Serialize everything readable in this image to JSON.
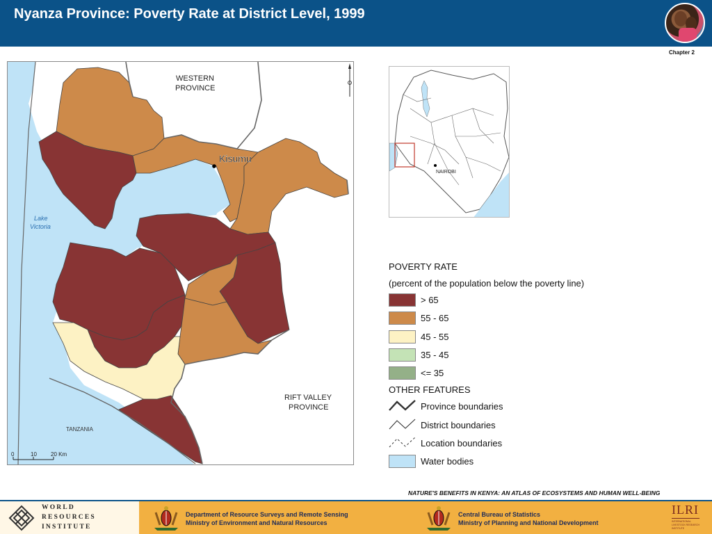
{
  "header": {
    "title": "Nyanza Province: Poverty Rate at District Level, 1999",
    "photo_icon": "children-photo"
  },
  "chapter": "Chapter 2",
  "map": {
    "labels": {
      "western": [
        "WESTERN",
        "PROVINCE"
      ],
      "rift_valley": [
        "RIFT VALLEY",
        "PROVINCE"
      ],
      "tanzania": "TANZANIA",
      "lake": [
        "Lake",
        "Victoria"
      ],
      "city": "Kisumu"
    },
    "scale": {
      "ticks": [
        "0",
        "10",
        "20 Km"
      ]
    },
    "north_arrow_icon": "north-arrow-icon"
  },
  "inset": {
    "city": "NAIROBI"
  },
  "legend": {
    "title": "POVERTY RATE",
    "subtitle": "(percent of the population below the poverty line)",
    "classes": [
      {
        "label": "> 65",
        "color": "#883434"
      },
      {
        "label": "55 - 65",
        "color": "#cd8a4a"
      },
      {
        "label": "45 - 55",
        "color": "#fdf2c4"
      },
      {
        "label": "35 - 45",
        "color": "#c4e3b6"
      },
      {
        "label": "<= 35",
        "color": "#94b088"
      }
    ],
    "other_title": "OTHER FEATURES",
    "features": [
      {
        "label": "Province boundaries",
        "icon": "province-boundary-icon"
      },
      {
        "label": "District boundaries",
        "icon": "district-boundary-icon"
      },
      {
        "label": "Location boundaries",
        "icon": "location-boundary-icon"
      },
      {
        "label": "Water bodies",
        "icon": "water-swatch",
        "color": "#bfe3f7"
      }
    ]
  },
  "atlas_note": "NATURE'S BENEFITS IN KENYA: AN ATLAS OF ECOSYSTEMS AND HUMAN WELL-BEING",
  "footer": {
    "wri": [
      "WORLD",
      "RESOURCES",
      "INSTITUTE"
    ],
    "dept1": [
      "Department of Resource Surveys and Remote Sensing",
      "Ministry of Environment and Natural Resources"
    ],
    "dept2": [
      "Central Bureau of Statistics",
      "Ministry of Planning and National Development"
    ],
    "ilri": "ILRI",
    "ilri_small": [
      "INTERNATIONAL",
      "LIVESTOCK RESEARCH",
      "INSTITUTE"
    ]
  },
  "colors": {
    "header_bg": "#0b5288",
    "footer_bg": "#f2b041",
    "water": "#bfe3f7"
  }
}
